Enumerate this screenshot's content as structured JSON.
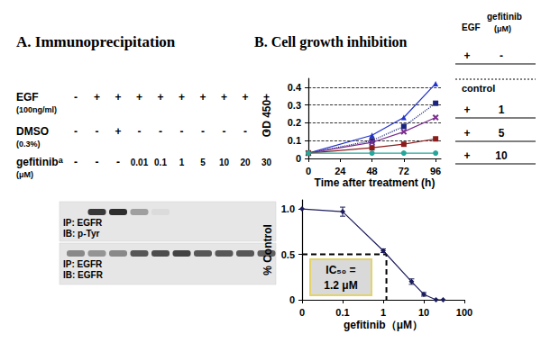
{
  "panel_a": {
    "title": "A. Immunoprecipitation",
    "rows": [
      {
        "label": "EGF",
        "sublabel": "(100ng/ml)",
        "lanes": [
          "-",
          "+",
          "+",
          "+",
          "+",
          "+",
          "+",
          "+",
          "+",
          "+"
        ]
      },
      {
        "label": "DMSO",
        "sublabel": "(0.3%)",
        "lanes": [
          "-",
          "-",
          "+",
          "-",
          "-",
          "-",
          "-",
          "-",
          "-",
          "-"
        ]
      },
      {
        "label": "gefitinib",
        "superscript": "a",
        "sublabel": "(μM)",
        "lanes": [
          "-",
          "-",
          "-",
          "0.01",
          "0.1",
          "1",
          "5",
          "10",
          "20",
          "30"
        ]
      }
    ],
    "blots": [
      {
        "ip": "IP: EGFR",
        "ib": "IB: p-Tyr",
        "band_intensity": [
          0.0,
          0.85,
          0.9,
          0.35,
          0.05,
          0.0,
          0.0,
          0.0,
          0.0,
          0.0
        ]
      },
      {
        "ip": "IP: EGFR",
        "ib": "IB: EGFR",
        "band_intensity": [
          0.45,
          0.4,
          0.45,
          0.7,
          0.75,
          0.8,
          0.7,
          0.7,
          0.7,
          0.65
        ]
      }
    ]
  },
  "chart_data": [
    {
      "type": "line",
      "title": "B. Cell growth inhibition",
      "x_label": "Time after treatment (h)",
      "y_label": "OD 450",
      "x": [
        0,
        48,
        72,
        96
      ],
      "xlim": [
        0,
        100
      ],
      "xticks": [
        0,
        24,
        48,
        72,
        96
      ],
      "ylim": [
        0,
        0.45
      ],
      "yticks": [
        0,
        0.1,
        0.2,
        0.3,
        0.4
      ],
      "grid": true,
      "legend_header": {
        "egf": "EGF",
        "gefitinib": "gefitinib",
        "unit": "(μM)"
      },
      "series": [
        {
          "egf": "+",
          "gefitinib": "-",
          "color": "#2233cc",
          "marker": "triangle",
          "line_style": "solid",
          "values": [
            0.03,
            0.13,
            0.23,
            0.42
          ]
        },
        {
          "name": "control",
          "color": "#1a237e",
          "marker": "square",
          "line_style": "dotted",
          "values": [
            0.03,
            0.1,
            0.18,
            0.31
          ]
        },
        {
          "egf": "+",
          "gefitinib": "1",
          "color": "#7b2d8e",
          "marker": "x",
          "line_style": "solid",
          "values": [
            0.03,
            0.09,
            0.15,
            0.23
          ]
        },
        {
          "egf": "+",
          "gefitinib": "5",
          "color": "#8b1c1c",
          "marker": "square",
          "line_style": "solid",
          "values": [
            0.03,
            0.06,
            0.08,
            0.11
          ]
        },
        {
          "egf": "+",
          "gefitinib": "10",
          "color": "#26a69a",
          "marker": "circle",
          "line_style": "solid",
          "values": [
            0.03,
            0.03,
            0.03,
            0.03
          ]
        }
      ]
    },
    {
      "type": "line",
      "log": "x",
      "x_label": "gefitinib（μM）",
      "y_label": "% Control",
      "x": [
        0.01,
        0.1,
        1,
        5,
        10,
        20,
        30
      ],
      "values": [
        1.0,
        0.97,
        0.54,
        0.2,
        0.06,
        0.0,
        0.0
      ],
      "errors": [
        null,
        0.05,
        0.02,
        0.03,
        0.02,
        null,
        null
      ],
      "xlim": [
        0.01,
        100
      ],
      "xticks": [
        {
          "value": 0.01,
          "label": "0"
        },
        0.1,
        1,
        10,
        100
      ],
      "ylim": [
        0,
        1.1
      ],
      "yticks": [
        0,
        0.5,
        {
          "value": 1,
          "label": "1.0"
        }
      ],
      "grid": false,
      "color": "#1c1c5c",
      "marker": "diamond",
      "line_style": "solid",
      "ic50": {
        "value": 1.2,
        "level": 0.5,
        "text": [
          "IC₅₀ =",
          "1.2 μM"
        ]
      }
    }
  ]
}
